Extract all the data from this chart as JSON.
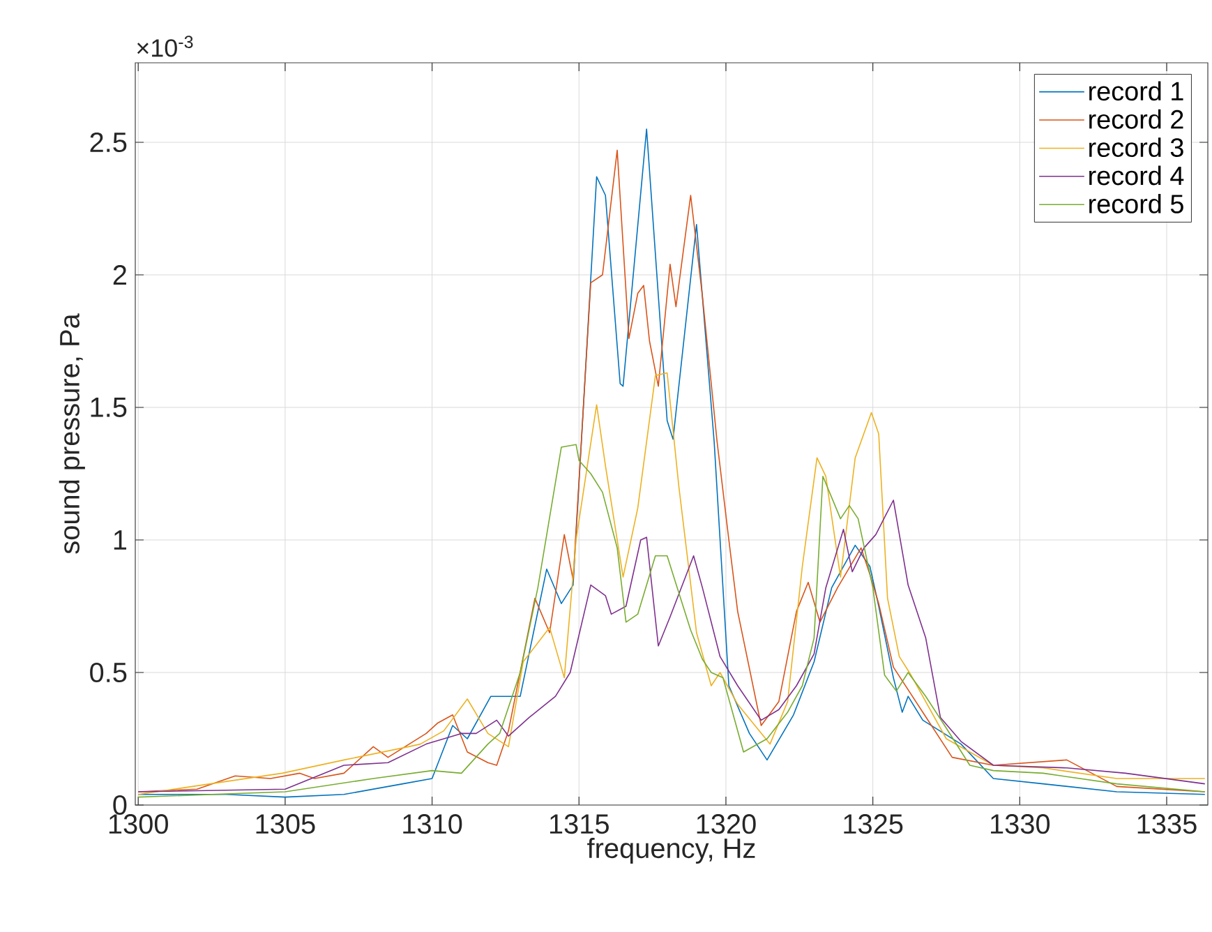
{
  "chart_data": {
    "type": "line",
    "xlabel": "frequency, Hz",
    "ylabel": "sound pressure, Pa",
    "annotations": [
      "×10$^{-3}$"
    ],
    "xlim": [
      1299.9,
      1336.4
    ],
    "ylim": [
      0,
      2.8
    ],
    "xticks": [
      1300,
      1305,
      1310,
      1315,
      1320,
      1325,
      1330,
      1335
    ],
    "yticks": [
      0,
      0.5,
      1,
      1.5,
      2,
      2.5
    ],
    "grid": true,
    "legend": "top right",
    "line_style": "solid",
    "marker": "none",
    "series": [
      {
        "name": "record 1",
        "color": "#0072bd",
        "x": [
          1300,
          1303,
          1305,
          1307,
          1309,
          1310,
          1310.7,
          1311.2,
          1312,
          1313.0,
          1313.9,
          1314.4,
          1314.8,
          1315.6,
          1315.9,
          1316.4,
          1316.5,
          1317.3,
          1318.0,
          1318.2,
          1319.0,
          1319.6,
          1320.1,
          1320.8,
          1321.4,
          1322.3,
          1323.0,
          1323.6,
          1324.4,
          1324.9,
          1325.2,
          1325.7,
          1326.0,
          1326.2,
          1326.7,
          1328.0,
          1329.1,
          1330.8,
          1333.3,
          1336.3
        ],
        "values": [
          0.04,
          0.04,
          0.03,
          0.04,
          0.08,
          0.1,
          0.3,
          0.25,
          0.41,
          0.41,
          0.89,
          0.76,
          0.83,
          2.37,
          2.3,
          1.59,
          1.58,
          2.55,
          1.45,
          1.38,
          2.19,
          1.37,
          0.45,
          0.27,
          0.17,
          0.34,
          0.54,
          0.82,
          0.98,
          0.9,
          0.75,
          0.48,
          0.35,
          0.41,
          0.32,
          0.23,
          0.1,
          0.08,
          0.05,
          0.04
        ]
      },
      {
        "name": "record 2",
        "color": "#d95319",
        "x": [
          1300,
          1302,
          1303.3,
          1304.5,
          1305.5,
          1306,
          1307,
          1308.0,
          1308.5,
          1309.8,
          1310.2,
          1310.7,
          1311.2,
          1311.9,
          1312.2,
          1312.6,
          1313.5,
          1314.0,
          1314.5,
          1314.8,
          1315.4,
          1315.8,
          1316.3,
          1316.7,
          1317.0,
          1317.2,
          1317.4,
          1317.7,
          1318.1,
          1318.3,
          1318.8,
          1319.2,
          1319.7,
          1320.1,
          1320.4,
          1321.2,
          1321.8,
          1322.4,
          1322.8,
          1323.2,
          1323.8,
          1324.6,
          1324.9,
          1325.2,
          1325.7,
          1326.7,
          1327.7,
          1329.1,
          1331.6,
          1333.3,
          1336.3
        ],
        "values": [
          0.05,
          0.06,
          0.11,
          0.1,
          0.12,
          0.1,
          0.12,
          0.22,
          0.18,
          0.27,
          0.31,
          0.34,
          0.2,
          0.16,
          0.15,
          0.28,
          0.78,
          0.65,
          1.02,
          0.85,
          1.97,
          2.0,
          2.47,
          1.76,
          1.93,
          1.96,
          1.75,
          1.58,
          2.04,
          1.88,
          2.3,
          1.92,
          1.37,
          1.0,
          0.73,
          0.3,
          0.39,
          0.73,
          0.84,
          0.69,
          0.82,
          0.97,
          0.87,
          0.76,
          0.52,
          0.35,
          0.18,
          0.15,
          0.17,
          0.07,
          0.05
        ]
      },
      {
        "name": "record 3",
        "color": "#edb120",
        "x": [
          1300,
          1304.9,
          1307.0,
          1309.2,
          1309.6,
          1310.4,
          1311.2,
          1311.9,
          1312.6,
          1313.1,
          1314.0,
          1314.5,
          1314.9,
          1315.6,
          1315.9,
          1316.5,
          1317.0,
          1317.6,
          1318.0,
          1318.4,
          1319.0,
          1319.5,
          1319.8,
          1320.4,
          1321.5,
          1322.1,
          1322.6,
          1323.1,
          1323.4,
          1323.9,
          1324.4,
          1324.95,
          1325.2,
          1325.5,
          1325.9,
          1326.3,
          1327.5,
          1329.1,
          1330.8,
          1333.3,
          1336.3
        ],
        "values": [
          0.04,
          0.12,
          0.17,
          0.22,
          0.23,
          0.28,
          0.4,
          0.27,
          0.22,
          0.54,
          0.67,
          0.48,
          1.0,
          1.51,
          1.28,
          0.86,
          1.12,
          1.62,
          1.63,
          1.2,
          0.65,
          0.45,
          0.5,
          0.38,
          0.23,
          0.39,
          0.9,
          1.31,
          1.24,
          0.86,
          1.31,
          1.48,
          1.4,
          0.78,
          0.56,
          0.49,
          0.25,
          0.15,
          0.14,
          0.1,
          0.1
        ]
      },
      {
        "name": "record 4",
        "color": "#7e2f8e",
        "x": [
          1300,
          1305,
          1307,
          1308.5,
          1309.8,
          1311,
          1311.5,
          1312.2,
          1312.6,
          1313.3,
          1314.2,
          1314.7,
          1315.4,
          1315.9,
          1316.1,
          1316.6,
          1317.1,
          1317.3,
          1317.7,
          1318.1,
          1318.9,
          1319.2,
          1319.8,
          1320.4,
          1321.2,
          1321.8,
          1322.4,
          1323.0,
          1323.4,
          1324.0,
          1324.3,
          1324.7,
          1325.1,
          1325.7,
          1326.2,
          1326.8,
          1327.3,
          1328.0,
          1329.1,
          1331.6,
          1333.6,
          1336.3
        ],
        "values": [
          0.05,
          0.06,
          0.15,
          0.16,
          0.23,
          0.27,
          0.27,
          0.32,
          0.26,
          0.33,
          0.41,
          0.5,
          0.83,
          0.79,
          0.72,
          0.75,
          1.0,
          1.01,
          0.6,
          0.71,
          0.94,
          0.82,
          0.56,
          0.45,
          0.32,
          0.36,
          0.45,
          0.57,
          0.82,
          1.04,
          0.88,
          0.97,
          1.02,
          1.15,
          0.83,
          0.63,
          0.33,
          0.24,
          0.15,
          0.14,
          0.12,
          0.08
        ]
      },
      {
        "name": "record 5",
        "color": "#77ac30",
        "x": [
          1300,
          1305,
          1308,
          1310,
          1311,
          1311.9,
          1312.3,
          1313.0,
          1313.6,
          1314.4,
          1314.9,
          1315.0,
          1315.4,
          1315.8,
          1316.3,
          1316.6,
          1317.0,
          1317.6,
          1318.0,
          1318.2,
          1318.8,
          1319.2,
          1319.5,
          1319.9,
          1320.6,
          1321.4,
          1322.1,
          1322.6,
          1323.0,
          1323.3,
          1323.9,
          1324.2,
          1324.5,
          1325.0,
          1325.4,
          1325.8,
          1326.2,
          1326.8,
          1327.5,
          1328.3,
          1329.1,
          1330.8,
          1333.3,
          1336.3
        ],
        "values": [
          0.03,
          0.05,
          0.1,
          0.13,
          0.12,
          0.23,
          0.27,
          0.5,
          0.82,
          1.35,
          1.36,
          1.3,
          1.25,
          1.18,
          0.97,
          0.69,
          0.72,
          0.94,
          0.94,
          0.87,
          0.66,
          0.55,
          0.5,
          0.48,
          0.2,
          0.25,
          0.35,
          0.45,
          0.63,
          1.24,
          1.08,
          1.13,
          1.08,
          0.82,
          0.49,
          0.43,
          0.5,
          0.41,
          0.29,
          0.15,
          0.13,
          0.12,
          0.08,
          0.05
        ]
      }
    ]
  }
}
